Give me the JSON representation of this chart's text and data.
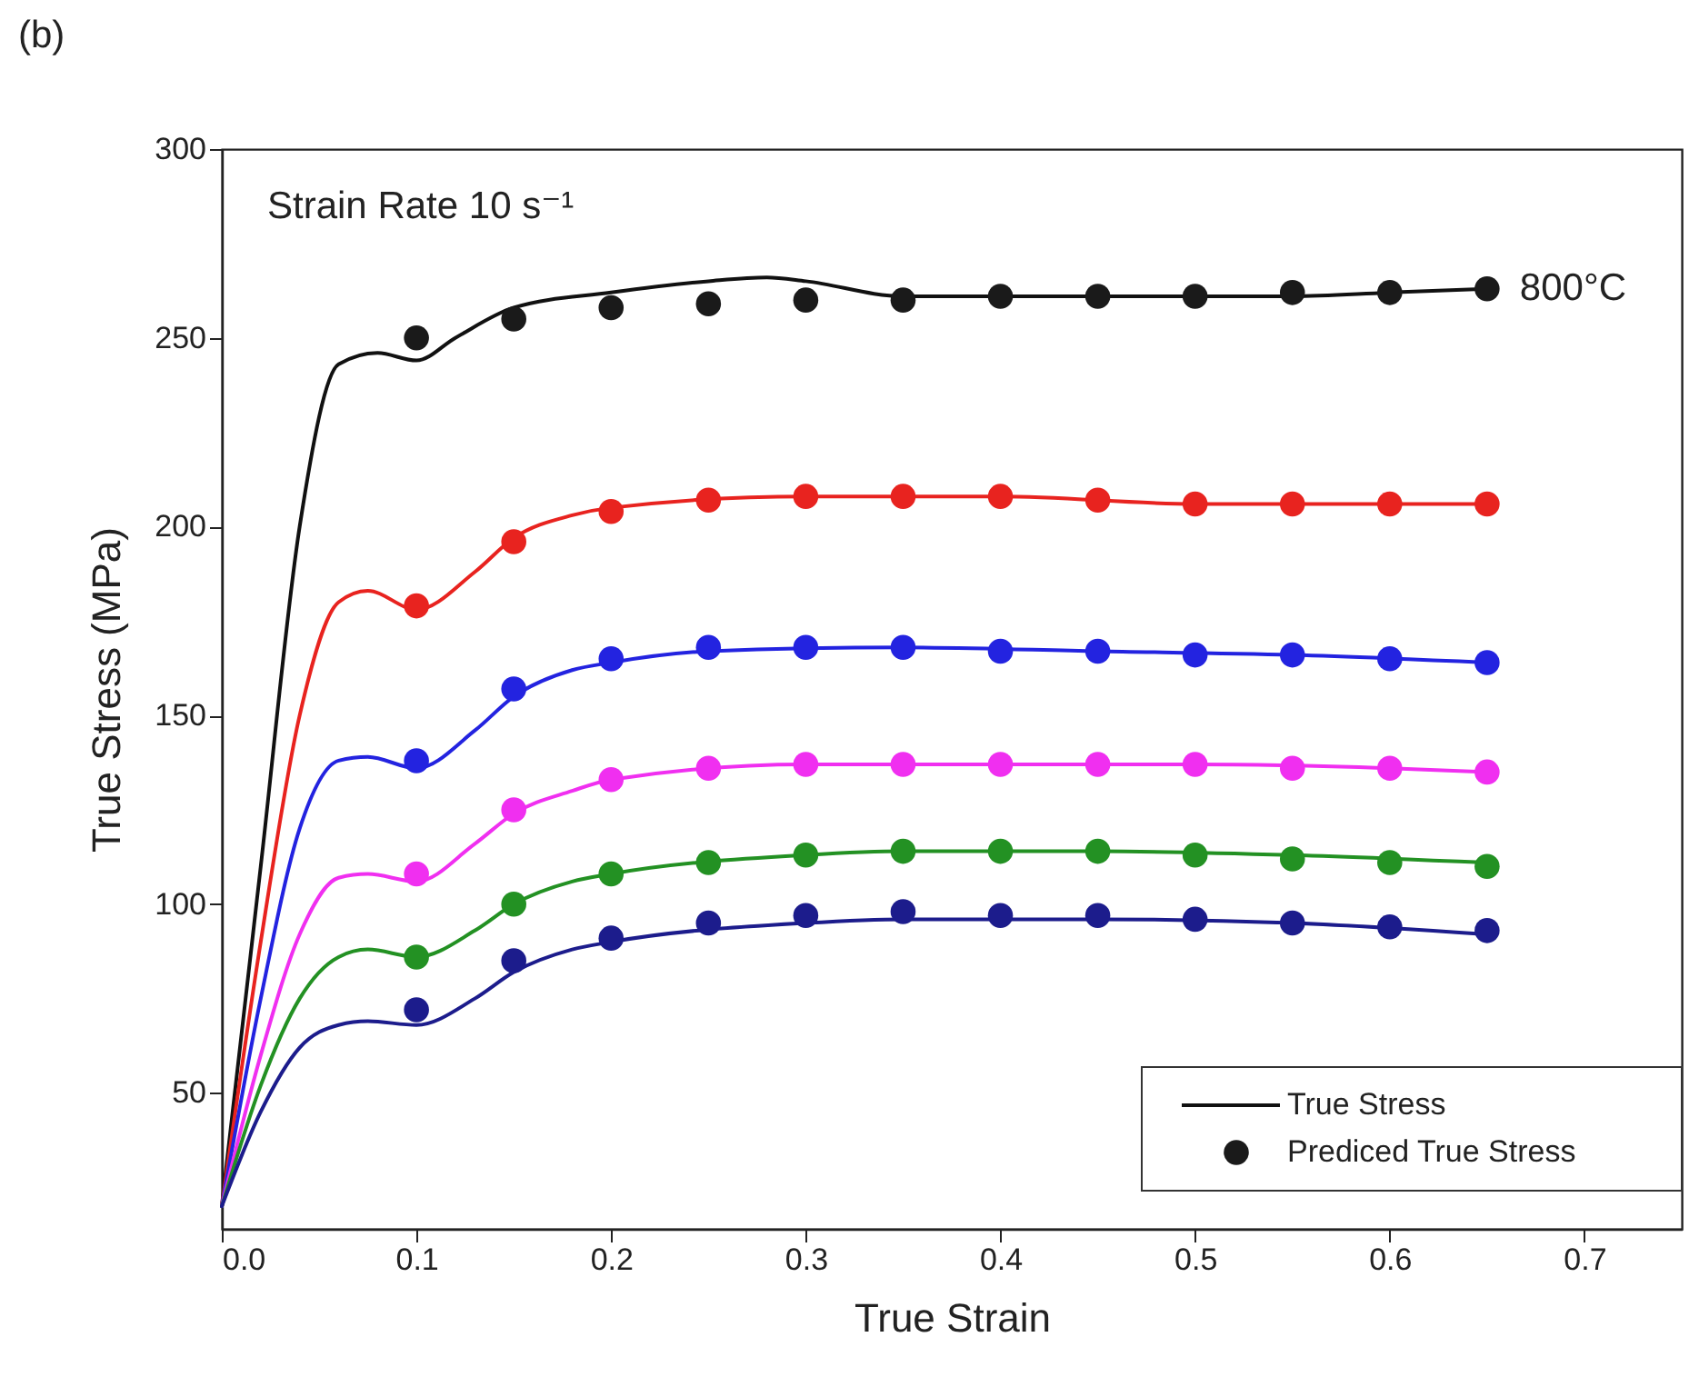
{
  "chart_data": {
    "type": "line",
    "title": "(b)",
    "xlabel": "True Strain",
    "ylabel": "True Stress (MPa)",
    "xlim": [
      0,
      0.75
    ],
    "ylim": [
      14,
      300
    ],
    "xticks": [
      {
        "value": 0,
        "label": "0.0"
      },
      0.1,
      0.2,
      0.3,
      0.4,
      0.5,
      0.6,
      0.7
    ],
    "yticks": [
      50,
      100,
      150,
      200,
      250,
      300
    ],
    "grid": false,
    "legend": "bottom right",
    "annotations": [
      "Strain Rate 10 s⁻¹",
      {
        "text": "800°C",
        "x": 0.65,
        "y": 263
      }
    ],
    "series": [
      {
        "name": "True Stress",
        "color": "#111111",
        "line_style": "solid",
        "x": [
          0,
          0.02,
          0.04,
          0.06,
          0.08,
          0.1,
          0.12,
          0.15,
          0.2,
          0.25,
          0.28,
          0.3,
          0.35,
          0.4,
          0.45,
          0.5,
          0.55,
          0.6,
          0.65
        ],
        "values": [
          20,
          110,
          200,
          243,
          246,
          244,
          250,
          258,
          262,
          265,
          266,
          265,
          261,
          261,
          261,
          261,
          261,
          262,
          263
        ]
      },
      {
        "type": "line",
        "color": "#e8231f",
        "line_style": "solid",
        "x": [
          0,
          0.02,
          0.04,
          0.06,
          0.075,
          0.1,
          0.13,
          0.15,
          0.18,
          0.2,
          0.3,
          0.4,
          0.5,
          0.65
        ],
        "values": [
          20,
          90,
          150,
          180,
          183,
          178,
          188,
          197,
          203,
          205,
          208,
          208,
          206,
          206
        ]
      },
      {
        "type": "line",
        "color": "#2323e0",
        "line_style": "solid",
        "x": [
          0,
          0.02,
          0.04,
          0.06,
          0.075,
          0.1,
          0.13,
          0.15,
          0.18,
          0.2,
          0.25,
          0.35,
          0.45,
          0.55,
          0.65
        ],
        "values": [
          20,
          75,
          120,
          138,
          139,
          136,
          146,
          155,
          162,
          164,
          167,
          168,
          167,
          166,
          164
        ]
      },
      {
        "type": "line",
        "color": "#f02ff0",
        "line_style": "solid",
        "x": [
          0,
          0.02,
          0.04,
          0.06,
          0.075,
          0.1,
          0.13,
          0.15,
          0.18,
          0.2,
          0.3,
          0.4,
          0.5,
          0.6,
          0.65
        ],
        "values": [
          20,
          60,
          92,
          107,
          108,
          106,
          116,
          124,
          130,
          133,
          137,
          137,
          137,
          136,
          135
        ]
      },
      {
        "type": "line",
        "color": "#239123",
        "line_style": "solid",
        "x": [
          0,
          0.02,
          0.04,
          0.06,
          0.075,
          0.1,
          0.13,
          0.15,
          0.18,
          0.2,
          0.3,
          0.35,
          0.45,
          0.55,
          0.65
        ],
        "values": [
          20,
          52,
          75,
          86,
          88,
          86,
          93,
          100,
          106,
          108,
          113,
          114,
          114,
          113,
          111
        ]
      },
      {
        "type": "line",
        "color": "#1c1c8c",
        "line_style": "solid",
        "x": [
          0,
          0.02,
          0.04,
          0.06,
          0.075,
          0.1,
          0.13,
          0.15,
          0.18,
          0.2,
          0.3,
          0.35,
          0.45,
          0.55,
          0.65
        ],
        "values": [
          20,
          45,
          62,
          68,
          69,
          68,
          75,
          82,
          88,
          90,
          95,
          96,
          96,
          95,
          92
        ]
      },
      {
        "name": "Prediced True Stress",
        "type": "scatter",
        "marker": "circle",
        "color": "#1a1a1a",
        "x": [
          0.1,
          0.15,
          0.2,
          0.25,
          0.3,
          0.35,
          0.4,
          0.45,
          0.5,
          0.55,
          0.6,
          0.65
        ],
        "values": [
          250,
          255,
          258,
          259,
          260,
          260,
          261,
          261,
          261,
          262,
          262,
          263
        ]
      },
      {
        "type": "scatter",
        "marker": "circle",
        "color": "#e8231f",
        "x": [
          0.1,
          0.15,
          0.2,
          0.25,
          0.3,
          0.35,
          0.4,
          0.45,
          0.5,
          0.55,
          0.6,
          0.65
        ],
        "values": [
          179,
          196,
          204,
          207,
          208,
          208,
          208,
          207,
          206,
          206,
          206,
          206
        ]
      },
      {
        "type": "scatter",
        "marker": "circle",
        "color": "#2323e0",
        "x": [
          0.1,
          0.15,
          0.2,
          0.25,
          0.3,
          0.35,
          0.4,
          0.45,
          0.5,
          0.55,
          0.6,
          0.65
        ],
        "values": [
          138,
          157,
          165,
          168,
          168,
          168,
          167,
          167,
          166,
          166,
          165,
          164
        ]
      },
      {
        "type": "scatter",
        "marker": "circle",
        "color": "#f02ff0",
        "x": [
          0.1,
          0.15,
          0.2,
          0.25,
          0.3,
          0.35,
          0.4,
          0.45,
          0.5,
          0.55,
          0.6,
          0.65
        ],
        "values": [
          108,
          125,
          133,
          136,
          137,
          137,
          137,
          137,
          137,
          136,
          136,
          135
        ]
      },
      {
        "type": "scatter",
        "marker": "circle",
        "color": "#239123",
        "x": [
          0.1,
          0.15,
          0.2,
          0.25,
          0.3,
          0.35,
          0.4,
          0.45,
          0.5,
          0.55,
          0.6,
          0.65
        ],
        "values": [
          86,
          100,
          108,
          111,
          113,
          114,
          114,
          114,
          113,
          112,
          111,
          110
        ]
      },
      {
        "type": "scatter",
        "marker": "circle",
        "color": "#1c1c8c",
        "x": [
          0.1,
          0.15,
          0.2,
          0.25,
          0.3,
          0.35,
          0.4,
          0.45,
          0.5,
          0.55,
          0.6,
          0.65
        ],
        "values": [
          72,
          85,
          91,
          95,
          97,
          98,
          97,
          97,
          96,
          95,
          94,
          93
        ]
      }
    ]
  }
}
